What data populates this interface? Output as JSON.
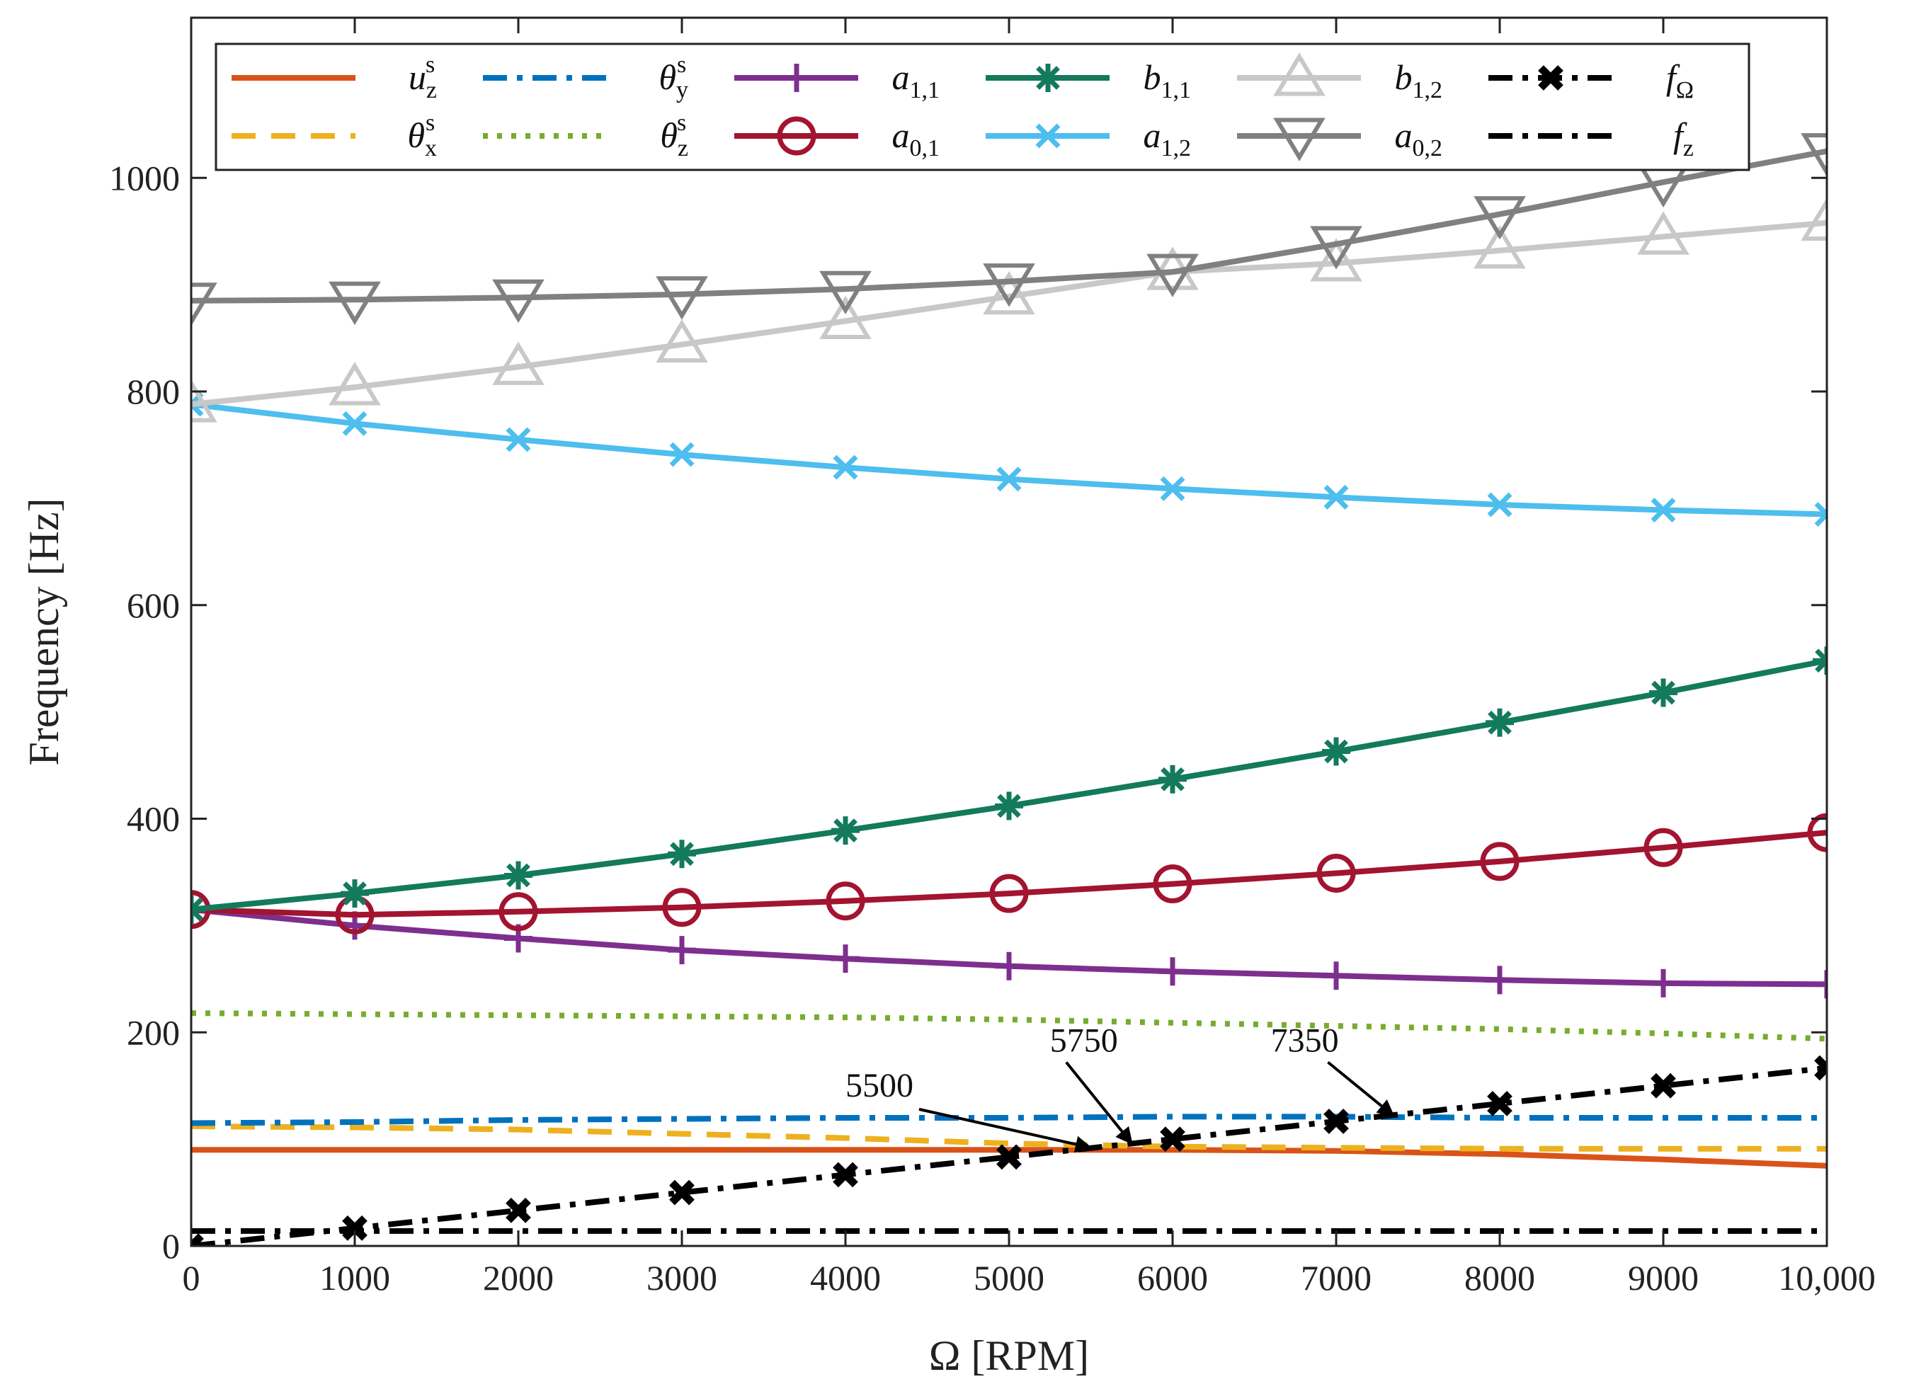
{
  "chart_data": {
    "type": "line",
    "xlabel": "Ω [RPM]",
    "ylabel": "Frequency [Hz]",
    "xlim": [
      0,
      10000
    ],
    "ylim": [
      0,
      1150
    ],
    "xticks": [
      0,
      1000,
      2000,
      3000,
      4000,
      5000,
      6000,
      7000,
      8000,
      9000,
      10000
    ],
    "xtick_labels": [
      "0",
      "1000",
      "2000",
      "3000",
      "4000",
      "5000",
      "6000",
      "7000",
      "8000",
      "9000",
      "10,000"
    ],
    "yticks": [
      0,
      200,
      400,
      600,
      800,
      1000
    ],
    "ytick_labels": [
      "0",
      "200",
      "400",
      "600",
      "800",
      "1000"
    ],
    "grid": false,
    "legend_position": "top",
    "x": [
      0,
      1000,
      2000,
      3000,
      4000,
      5000,
      6000,
      7000,
      8000,
      9000,
      10000
    ],
    "series": [
      {
        "name": "u",
        "sub": "z",
        "sup": "s",
        "color": "#D95319",
        "dash": "solid",
        "marker": "none",
        "values": [
          90,
          90,
          90,
          90,
          90,
          90,
          90,
          89,
          86,
          81,
          75
        ]
      },
      {
        "name": "θ",
        "sub": "x",
        "sup": "s",
        "color": "#EDB120",
        "dash": "dashed",
        "marker": "none",
        "values": [
          112,
          111,
          109,
          105,
          101,
          96,
          93,
          92,
          91,
          91,
          91
        ]
      },
      {
        "name": "θ",
        "sub": "y",
        "sup": "s",
        "color": "#0072BD",
        "dash": "dashdot",
        "marker": "none",
        "values": [
          115,
          116,
          118,
          119,
          120,
          120,
          121,
          121,
          120,
          120,
          120
        ]
      },
      {
        "name": "θ",
        "sub": "z",
        "sup": "s",
        "color": "#77AC30",
        "dash": "dotted",
        "marker": "none",
        "values": [
          218,
          217,
          216,
          215,
          214,
          212,
          209,
          206,
          203,
          199,
          194
        ]
      },
      {
        "name": "a",
        "sub": "1,1",
        "sup": "",
        "color": "#7E2F8E",
        "dash": "solid",
        "marker": "plus",
        "values": [
          315,
          300,
          288,
          277,
          269,
          262,
          257,
          253,
          249,
          246,
          245
        ]
      },
      {
        "name": "a",
        "sub": "0,1",
        "sup": "",
        "color": "#A2142F",
        "dash": "solid",
        "marker": "circle",
        "values": [
          315,
          310,
          313,
          317,
          323,
          330,
          339,
          349,
          360,
          373,
          387
        ]
      },
      {
        "name": "b",
        "sub": "1,1",
        "sup": "",
        "color": "#137A5C",
        "dash": "solid",
        "marker": "asterisk",
        "values": [
          315,
          330,
          347,
          367,
          389,
          412,
          437,
          463,
          490,
          518,
          548
        ]
      },
      {
        "name": "a",
        "sub": "1,2",
        "sup": "",
        "color": "#4DBEEE",
        "dash": "solid",
        "marker": "x",
        "values": [
          788,
          770,
          755,
          741,
          729,
          718,
          709,
          701,
          694,
          689,
          685
        ]
      },
      {
        "name": "b",
        "sub": "1,2",
        "sup": "",
        "color": "#C8C8C8",
        "dash": "solid",
        "marker": "triangle-up",
        "values": [
          788,
          804,
          823,
          844,
          866,
          889,
          912,
          920,
          932,
          945,
          958
        ]
      },
      {
        "name": "a",
        "sub": "0,2",
        "sup": "",
        "color": "#808080",
        "dash": "solid",
        "marker": "triangle-down",
        "values": [
          885,
          886,
          888,
          891,
          896,
          903,
          912,
          938,
          966,
          996,
          1025
        ]
      },
      {
        "name": "f",
        "sub": "Ω",
        "sup": "",
        "color": "#000000",
        "dash": "dashdot",
        "marker": "x-bold",
        "values": [
          0,
          16.7,
          33.3,
          50,
          66.7,
          83.3,
          100,
          116.7,
          133.3,
          150,
          166.7
        ]
      },
      {
        "name": "f",
        "sub": "z",
        "sup": "",
        "color": "#000000",
        "dash": "dashdot",
        "marker": "none",
        "values": [
          14,
          14,
          14,
          14,
          14,
          14,
          14,
          14,
          14,
          14,
          14
        ]
      }
    ],
    "annotations": [
      {
        "text": "5500",
        "label_x": 4000,
        "label_y": 140,
        "arrow_from_x": 4450,
        "arrow_from_y": 128,
        "arrow_to_x": 5500,
        "arrow_to_y": 92
      },
      {
        "text": "5750",
        "label_x": 5250,
        "label_y": 182,
        "arrow_from_x": 5350,
        "arrow_from_y": 172,
        "arrow_to_x": 5750,
        "arrow_to_y": 96
      },
      {
        "text": "7350",
        "label_x": 6600,
        "label_y": 182,
        "arrow_from_x": 6950,
        "arrow_from_y": 172,
        "arrow_to_x": 7350,
        "arrow_to_y": 122
      }
    ]
  }
}
